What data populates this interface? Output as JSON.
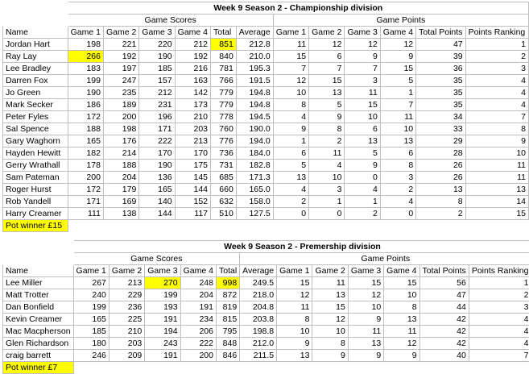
{
  "championship": {
    "title": "Week 9 Season 2 - Championship division",
    "group_scores": "Game Scores",
    "group_points": "Game Points",
    "headers": [
      "Name",
      "Game 1",
      "Game 2",
      "Game 3",
      "Game 4",
      "Total",
      "Average",
      "Game 1",
      "Game 2",
      "Game 3",
      "Game 4",
      "Total Points",
      "Points Ranking"
    ],
    "rows": [
      [
        "Jordan Hart",
        "198",
        "221",
        "220",
        "212",
        "851",
        "212.8",
        "11",
        "12",
        "12",
        "12",
        "47",
        "1"
      ],
      [
        "Ray Lay",
        "266",
        "192",
        "190",
        "192",
        "840",
        "210.0",
        "15",
        "6",
        "9",
        "9",
        "39",
        "2"
      ],
      [
        "Lee Bradley",
        "183",
        "197",
        "185",
        "216",
        "781",
        "195.3",
        "7",
        "7",
        "7",
        "15",
        "36",
        "3"
      ],
      [
        "Darren Fox",
        "199",
        "247",
        "157",
        "163",
        "766",
        "191.5",
        "12",
        "15",
        "3",
        "5",
        "35",
        "4"
      ],
      [
        "Jo Green",
        "190",
        "235",
        "212",
        "142",
        "779",
        "194.8",
        "10",
        "13",
        "11",
        "1",
        "35",
        "4"
      ],
      [
        "Mark Secker",
        "186",
        "189",
        "231",
        "173",
        "779",
        "194.8",
        "8",
        "5",
        "15",
        "7",
        "35",
        "4"
      ],
      [
        "Peter Fyles",
        "172",
        "200",
        "196",
        "210",
        "778",
        "194.5",
        "4",
        "9",
        "10",
        "11",
        "34",
        "7"
      ],
      [
        "Sal Spence",
        "188",
        "198",
        "171",
        "203",
        "760",
        "190.0",
        "9",
        "8",
        "6",
        "10",
        "33",
        "8"
      ],
      [
        "Gary Waghorn",
        "165",
        "176",
        "222",
        "213",
        "776",
        "194.0",
        "1",
        "2",
        "13",
        "13",
        "29",
        "9"
      ],
      [
        "Hayden Hewitt",
        "182",
        "214",
        "170",
        "170",
        "736",
        "184.0",
        "6",
        "11",
        "5",
        "6",
        "28",
        "10"
      ],
      [
        "Gerry Wrathall",
        "178",
        "188",
        "190",
        "175",
        "731",
        "182.8",
        "5",
        "4",
        "9",
        "8",
        "26",
        "11"
      ],
      [
        "Sam Pateman",
        "200",
        "204",
        "136",
        "145",
        "685",
        "171.3",
        "13",
        "10",
        "0",
        "3",
        "26",
        "11"
      ],
      [
        "Roger Hurst",
        "172",
        "179",
        "165",
        "144",
        "660",
        "165.0",
        "4",
        "3",
        "4",
        "2",
        "13",
        "13"
      ],
      [
        "Rob Yandell",
        "171",
        "169",
        "140",
        "152",
        "632",
        "158.0",
        "2",
        "1",
        "1",
        "4",
        "8",
        "14"
      ],
      [
        "Harry Creamer",
        "111",
        "138",
        "144",
        "117",
        "510",
        "127.5",
        "0",
        "0",
        "2",
        "0",
        "2",
        "15"
      ]
    ],
    "highlights": [
      [
        0,
        5
      ],
      [
        1,
        1
      ]
    ],
    "pot_winner": "Pot winner £15"
  },
  "premiership": {
    "title": "Week 9 Season 2 - Premership division",
    "group_scores": "Game Scores",
    "group_points": "Game Points",
    "headers": [
      "Name",
      "Game 1",
      "Game 2",
      "Game 3",
      "Game 4",
      "Total",
      "Average",
      "Game 1",
      "Game 2",
      "Game 3",
      "Game 4",
      "Total Points",
      "Points Ranking"
    ],
    "rows": [
      [
        "Lee Miller",
        "267",
        "213",
        "270",
        "248",
        "998",
        "249.5",
        "15",
        "11",
        "15",
        "15",
        "56",
        "1"
      ],
      [
        "Matt Trotter",
        "240",
        "229",
        "199",
        "204",
        "872",
        "218.0",
        "12",
        "13",
        "12",
        "10",
        "47",
        "2"
      ],
      [
        "Dan Bonfield",
        "199",
        "236",
        "193",
        "191",
        "819",
        "204.8",
        "11",
        "15",
        "10",
        "8",
        "44",
        "3"
      ],
      [
        "Kevin Creamer",
        "165",
        "225",
        "191",
        "234",
        "815",
        "203.8",
        "8",
        "12",
        "9",
        "13",
        "42",
        "4"
      ],
      [
        "Mac Macpherson",
        "185",
        "210",
        "194",
        "206",
        "795",
        "198.8",
        "10",
        "10",
        "11",
        "11",
        "42",
        "4"
      ],
      [
        "Glen Richardson",
        "180",
        "203",
        "243",
        "222",
        "848",
        "212.0",
        "9",
        "8",
        "13",
        "12",
        "42",
        "4"
      ],
      [
        "craig barrett",
        "246",
        "209",
        "191",
        "200",
        "846",
        "211.5",
        "13",
        "9",
        "9",
        "9",
        "40",
        "7"
      ]
    ],
    "highlights": [
      [
        0,
        3
      ],
      [
        0,
        5
      ]
    ],
    "pot_winner": "Pot winner £7"
  }
}
